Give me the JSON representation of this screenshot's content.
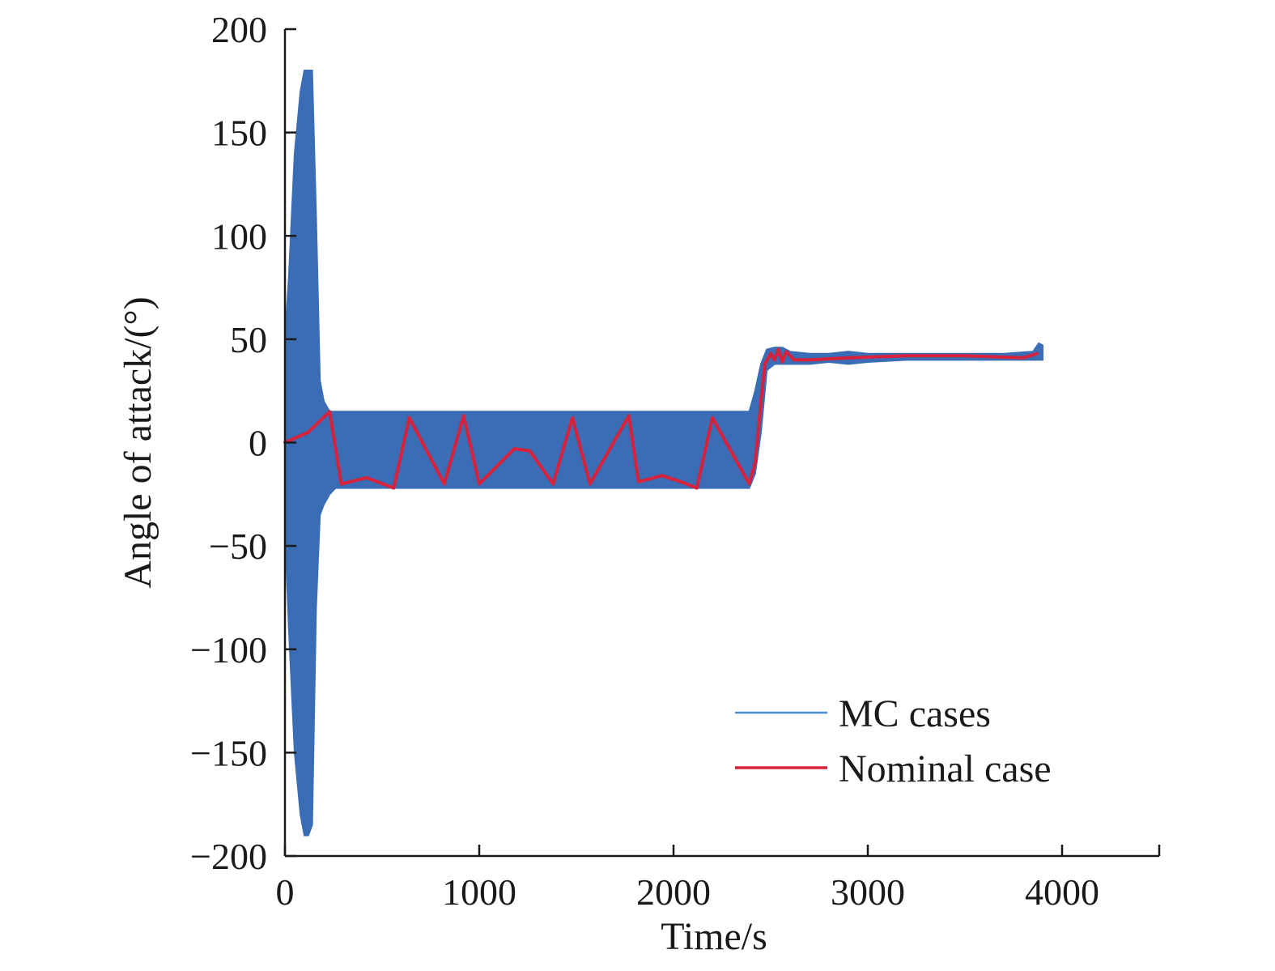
{
  "chart_data": {
    "type": "line",
    "xlabel": "Time/s",
    "ylabel": "Angle of attack/(°)",
    "xlim": [
      0,
      4500
    ],
    "ylim": [
      -200,
      200
    ],
    "xticks": [
      0,
      1000,
      2000,
      3000,
      4000
    ],
    "yticks": [
      200,
      150,
      100,
      50,
      0,
      -50,
      -100,
      -150,
      -200
    ],
    "xtick_labels": [
      "0",
      "1000",
      "2000",
      "3000",
      "4000"
    ],
    "ytick_labels": [
      "200",
      "150",
      "100",
      "50",
      "0",
      "−50",
      "−100",
      "−150",
      "−200"
    ],
    "grid": false,
    "legend": {
      "position": "bottom-right"
    },
    "series": [
      {
        "name": "MC cases",
        "color": "#3a6db5",
        "kind": "band",
        "x": [
          0,
          20,
          50,
          80,
          100,
          120,
          140,
          160,
          180,
          200,
          230,
          260,
          400,
          800,
          1200,
          1600,
          2000,
          2300,
          2390,
          2420,
          2450,
          2480,
          2520,
          2560,
          2600,
          2700,
          2800,
          2900,
          3000,
          3200,
          3500,
          3700,
          3850,
          3880,
          3900
        ],
        "upper": [
          50,
          80,
          140,
          170,
          180,
          180,
          180,
          110,
          30,
          20,
          15,
          15,
          15,
          15,
          15,
          15,
          15,
          15,
          15,
          25,
          38,
          45,
          46,
          46,
          44,
          43,
          43,
          44,
          43,
          43,
          43,
          43,
          44,
          48,
          47
        ],
        "lower": [
          -40,
          -90,
          -150,
          -180,
          -190,
          -190,
          -185,
          -80,
          -35,
          -30,
          -25,
          -22,
          -22,
          -22,
          -22,
          -22,
          -22,
          -22,
          -22,
          -15,
          5,
          35,
          38,
          38,
          38,
          38,
          39,
          38,
          39,
          40,
          40,
          40,
          40,
          40,
          40
        ]
      },
      {
        "name": "Nominal case",
        "color": "#d8213a",
        "kind": "line",
        "x": [
          0,
          120,
          230,
          290,
          420,
          560,
          640,
          820,
          920,
          1000,
          1180,
          1260,
          1380,
          1480,
          1570,
          1770,
          1820,
          1940,
          2040,
          2120,
          2200,
          2390,
          2420,
          2450,
          2470,
          2500,
          2520,
          2540,
          2560,
          2580,
          2620,
          2700,
          2900,
          3200,
          3500,
          3800,
          3870
        ],
        "y": [
          0,
          5,
          15,
          -20,
          -17,
          -22,
          12,
          -20,
          13,
          -20,
          -3,
          -4,
          -20,
          12,
          -20,
          13,
          -19,
          -16,
          -19,
          -22,
          12,
          -20,
          -10,
          20,
          38,
          43,
          40,
          45,
          39,
          44,
          40,
          40,
          41,
          42,
          42,
          41,
          43
        ]
      }
    ]
  }
}
